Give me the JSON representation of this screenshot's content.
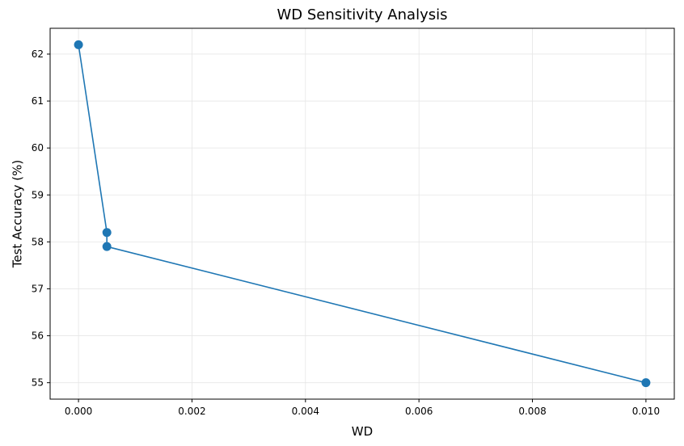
{
  "chart_data": {
    "type": "line",
    "title": "WD Sensitivity Analysis",
    "xlabel": "WD",
    "ylabel": "Test Accuracy (%)",
    "series": [
      {
        "x": [
          0.0,
          0.0005,
          0.0005,
          0.01
        ],
        "y": [
          62.2,
          58.2,
          57.9,
          55.0
        ],
        "color": "#1f77b4",
        "marker": "circle"
      }
    ],
    "xlim": [
      -0.0005,
      0.0105
    ],
    "ylim": [
      54.65,
      62.55
    ],
    "xticks": [
      0.0,
      0.002,
      0.004,
      0.006,
      0.008,
      0.01
    ],
    "xtick_labels": [
      "0.000",
      "0.002",
      "0.004",
      "0.006",
      "0.008",
      "0.010"
    ],
    "yticks": [
      55,
      56,
      57,
      58,
      59,
      60,
      61,
      62
    ],
    "ytick_labels": [
      "55",
      "56",
      "57",
      "58",
      "59",
      "60",
      "61",
      "62"
    ],
    "grid": true,
    "colors": {
      "line": "#1f77b4",
      "grid": "#e6e6e6",
      "axes": "#000000"
    }
  }
}
